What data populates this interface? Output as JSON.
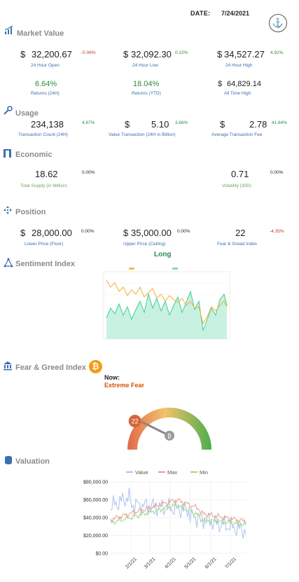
{
  "header": {
    "date_label": "DATE:",
    "date": "7/24/2021"
  },
  "sections": {
    "market_value": "Market Value",
    "usage": "Usage",
    "economic": "Economic",
    "position": "Position",
    "sentiment": "Sentiment Index",
    "fear_greed": "Fear & Greed Index",
    "valuation": "Valuation"
  },
  "market": {
    "open": {
      "cur": "$",
      "value": "32,200.67",
      "pct": "-0.06%",
      "label": "24 Hour Open"
    },
    "low": {
      "cur": "$",
      "value": "32,092.30",
      "pct": "0.22%",
      "label": "24 Hour Low"
    },
    "high": {
      "cur": "$",
      "value": "34,527.27",
      "pct": "4.92%",
      "label": "24 Hour High"
    },
    "ret24": {
      "value": "6.64%",
      "label": "Returns (24H)"
    },
    "retytd": {
      "value": "18.04%",
      "label": "Returns (YTD)"
    },
    "ath": {
      "cur": "$",
      "value": "64,829.14",
      "label": "All Time High"
    }
  },
  "usage": {
    "tx_count": {
      "value": "234,138",
      "pct": "4.67%",
      "label": "Transaction Count (24H)"
    },
    "tx_value": {
      "cur": "$",
      "value": "5.10",
      "pct": "3.66%",
      "label": "Value Transaction (24H in Billion)"
    },
    "tx_fee": {
      "cur": "$",
      "value": "2.78",
      "pct": "41.84%",
      "label": "Average Transaction Fee"
    }
  },
  "economic": {
    "supply": {
      "value": "18.62",
      "pct": "0.00%",
      "label": "Total Supply (in Million)"
    },
    "volatility": {
      "value": "0.71",
      "pct": "0.00%",
      "label": "Volatility (30D)"
    }
  },
  "position": {
    "floor": {
      "cur": "$",
      "value": "28,000.00",
      "pct": "0.00%",
      "label": "Lower Price (Floor)"
    },
    "ceiling": {
      "cur": "$",
      "value": "35,000.00",
      "pct": "0.00%",
      "label": "Upper Price (Ceiling)"
    },
    "fg": {
      "value": "22",
      "pct": "-4.35%",
      "label": "Fear & Gread Index"
    },
    "signal": "Long"
  },
  "fear_greed": {
    "now_label": "Now:",
    "state": "Extreme Fear",
    "value": "22",
    "level_fraction": 0.22,
    "coin_glyph": "₿"
  },
  "chart_data": {
    "type": "line",
    "title": "",
    "series": [
      {
        "name": "Value",
        "color": "#aac4ee"
      },
      {
        "name": "Max",
        "color": "#ee9c8e"
      },
      {
        "name": "Min",
        "color": "#9fd68a"
      }
    ],
    "y_ticks": [
      "$80,000.00",
      "$60,000.00",
      "$40,000.00",
      "$20,000.00",
      "$0.00"
    ],
    "ylim": [
      0,
      80000
    ],
    "x_ticks": [
      "2/1/21",
      "3/1/21",
      "4/1/21",
      "5/1/21",
      "6/1/21",
      "7/1/21"
    ],
    "x_start": "1/1/21",
    "x_end": "7/24/21",
    "legend_placement": "top"
  },
  "colors": {
    "accent_blue": "#3a6fb0",
    "negative": "#c0392b",
    "positive": "#2e8b3e",
    "btc": "#f39c12"
  }
}
